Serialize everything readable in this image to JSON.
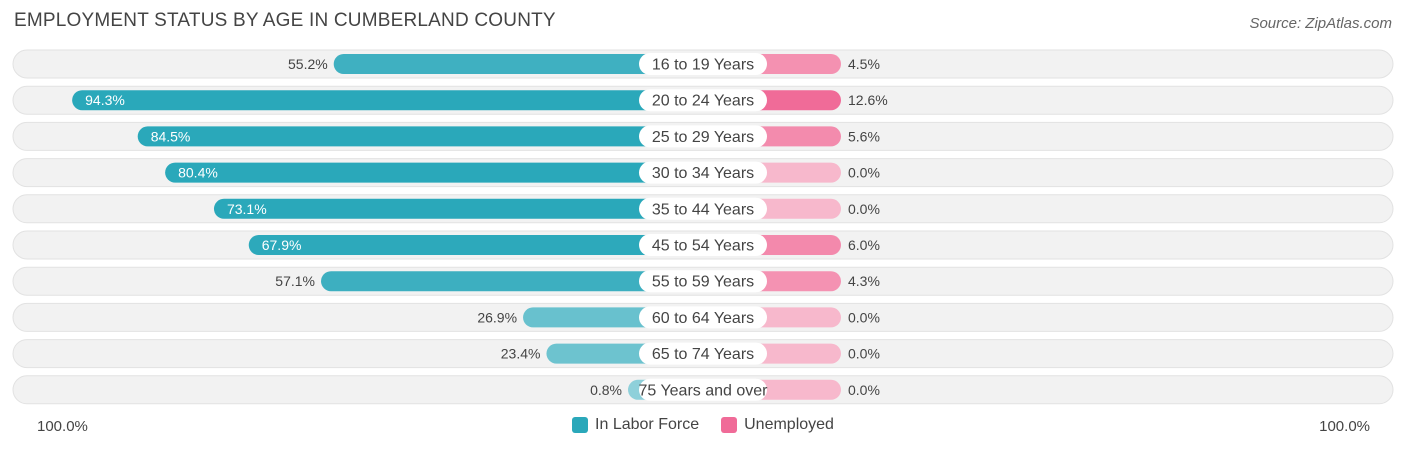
{
  "title": "EMPLOYMENT STATUS BY AGE IN CUMBERLAND COUNTY",
  "source": "Source: ZipAtlas.com",
  "axis": {
    "left_label": "100.0%",
    "right_label": "100.0%"
  },
  "legend": [
    {
      "label": "In Labor Force",
      "color": "#2aa8ba"
    },
    {
      "label": "Unemployed",
      "color": "#f06b98"
    }
  ],
  "chart_data": {
    "type": "bar",
    "orientation": "horizontal-diverging",
    "title": "EMPLOYMENT STATUS BY AGE IN CUMBERLAND COUNTY",
    "categories": [
      "16 to 19 Years",
      "20 to 24 Years",
      "25 to 29 Years",
      "30 to 34 Years",
      "35 to 44 Years",
      "45 to 54 Years",
      "55 to 59 Years",
      "60 to 64 Years",
      "65 to 74 Years",
      "75 Years and over"
    ],
    "series": [
      {
        "name": "In Labor Force",
        "values": [
          55.2,
          94.3,
          84.5,
          80.4,
          73.1,
          67.9,
          57.1,
          26.9,
          23.4,
          0.8
        ],
        "labels": [
          "55.2%",
          "94.3%",
          "84.5%",
          "80.4%",
          "73.1%",
          "67.9%",
          "57.1%",
          "26.9%",
          "23.4%",
          "0.8%"
        ]
      },
      {
        "name": "Unemployed",
        "values": [
          4.5,
          12.6,
          5.6,
          0.0,
          0.0,
          6.0,
          4.3,
          0.0,
          0.0,
          0.0
        ],
        "labels": [
          "4.5%",
          "12.6%",
          "5.6%",
          "0.0%",
          "0.0%",
          "6.0%",
          "4.3%",
          "0.0%",
          "0.0%",
          "0.0%"
        ]
      }
    ],
    "xlim_left": [
      0,
      100
    ],
    "xlim_right": [
      0,
      100
    ],
    "legend_position": "bottom-center"
  }
}
